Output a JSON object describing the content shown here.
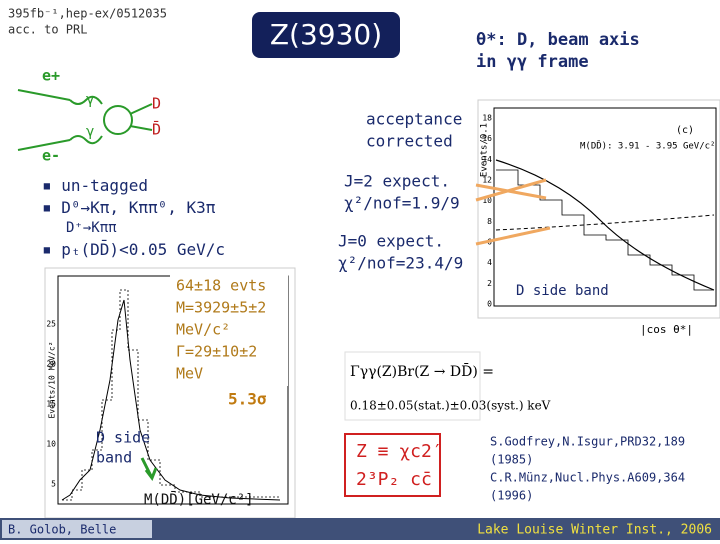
{
  "header": {
    "reference": "395fb⁻¹,hep-ex/0512035",
    "note": "acc. to PRL",
    "title": "Z(3930)",
    "angle_definition": [
      "θ*: D, beam axis",
      "in γγ frame"
    ]
  },
  "diagram": {
    "labels": [
      "e+",
      "e-",
      "γ",
      "γ",
      "D",
      "D̄"
    ]
  },
  "bullets": [
    "un-tagged",
    "D⁰→Kπ, Kππ⁰, K3π",
    "D⁺→Kππ",
    "pₜ(DD̄)<0.05 GeV/c"
  ],
  "left_plot": {
    "y_label": "Events/10 MeV/c²",
    "yticks": [
      5,
      10,
      15,
      20,
      25
    ],
    "fit_results": [
      "64±18 evts",
      "M=3929±5±2",
      "MeV/c²",
      "Γ=29±10±2",
      "MeV"
    ],
    "significance": "5.3σ",
    "sideband": [
      "D side",
      "band"
    ],
    "x_label": "M(DD̄)[GeV/c²]"
  },
  "right_plot": {
    "annotation": [
      "acceptance",
      "corrected"
    ],
    "y_label": "Events/0.1",
    "yticks": [
      0,
      2,
      4,
      6,
      8,
      10,
      12,
      14,
      16,
      18
    ],
    "panel": "(c)",
    "mass_window": "M(DD̄): 3.91 - 3.95 GeV/c²",
    "x_label": "|cos θ*|",
    "sideband": "D side band",
    "j2": [
      "J=2 expect.",
      "χ²/nof=1.9/9"
    ],
    "j0": [
      "J=0 expect.",
      "χ²/nof=23.4/9"
    ]
  },
  "formula": [
    "Γγγ(Z)Br(Z → DD̄) =",
    "0.18±0.05(stat.)±0.03(syst.) keV"
  ],
  "identification": [
    "Z ≡ χc2′",
    "2³P₂ cc̄"
  ],
  "references": [
    "S.Godfrey,N.Isgur,PRD32,189",
    "(1985)",
    "C.R.Münz,Nucl.Phys.A609,364",
    "(1996)"
  ],
  "footer": {
    "author": "B. Golob, Belle",
    "venue": "Lake Louise Winter Inst., 2006"
  }
}
